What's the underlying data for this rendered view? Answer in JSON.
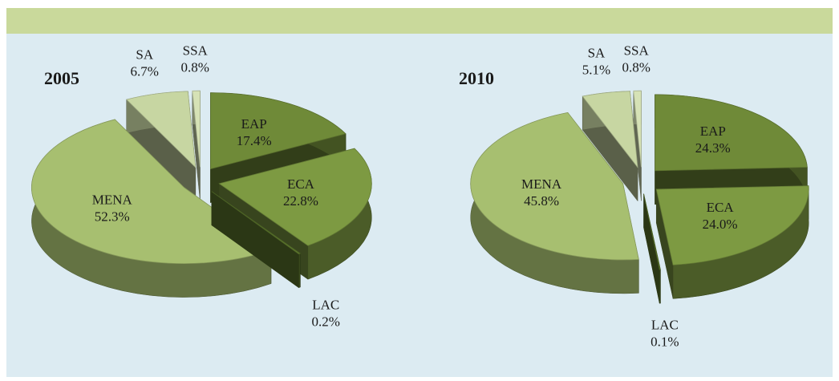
{
  "chart_data": [
    {
      "type": "pie",
      "title": "2005",
      "categories": [
        "EAP",
        "ECA",
        "LAC",
        "MENA",
        "SA",
        "SSA"
      ],
      "values": [
        17.4,
        22.8,
        0.2,
        52.3,
        6.7,
        0.8
      ],
      "value_labels": [
        "17.4%",
        "22.8%",
        "0.2%",
        "52.3%",
        "6.7%",
        "0.8%"
      ],
      "colors": [
        "#6f8a38",
        "#7d9a42",
        "#5f7a2e",
        "#a7bf70",
        "#c7d6a2",
        "#d6e2b6"
      ]
    },
    {
      "type": "pie",
      "title": "2010",
      "categories": [
        "EAP",
        "ECA",
        "LAC",
        "MENA",
        "SA",
        "SSA"
      ],
      "values": [
        24.3,
        24.0,
        0.1,
        45.8,
        5.1,
        0.8
      ],
      "value_labels": [
        "24.3%",
        "24.0%",
        "0.1%",
        "45.8%",
        "5.1%",
        "0.8%"
      ],
      "colors": [
        "#6f8a38",
        "#7d9a42",
        "#5f7a2e",
        "#a7bf70",
        "#c7d6a2",
        "#d6e2b6"
      ]
    }
  ]
}
